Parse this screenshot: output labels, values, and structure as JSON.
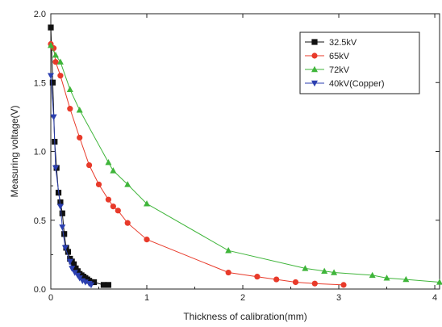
{
  "chart_data": {
    "type": "scatter",
    "xlabel": "Thickness of calibration(mm)",
    "ylabel": "Measuring voltage(V)",
    "xlim": [
      0,
      4.05
    ],
    "ylim": [
      0,
      2.0
    ],
    "x_ticks": [
      "0",
      "1",
      "2",
      "3",
      "4"
    ],
    "y_ticks": [
      "0.0",
      "0.5",
      "1.0",
      "1.5",
      "2.0"
    ],
    "legend_position": "top-right",
    "series": [
      {
        "name": "32.5kV",
        "color": "#111111",
        "marker": "square",
        "x": [
          0.0,
          0.02,
          0.04,
          0.06,
          0.08,
          0.1,
          0.12,
          0.14,
          0.16,
          0.18,
          0.2,
          0.22,
          0.24,
          0.26,
          0.28,
          0.3,
          0.32,
          0.34,
          0.36,
          0.38,
          0.4,
          0.42,
          0.45,
          0.55,
          0.6
        ],
        "y": [
          1.9,
          1.5,
          1.07,
          0.88,
          0.7,
          0.63,
          0.55,
          0.4,
          0.3,
          0.27,
          0.22,
          0.2,
          0.18,
          0.15,
          0.13,
          0.11,
          0.1,
          0.09,
          0.08,
          0.07,
          0.06,
          0.05,
          0.05,
          0.03,
          0.03
        ]
      },
      {
        "name": "65kV",
        "color": "#e83a2a",
        "marker": "circle",
        "x": [
          0.0,
          0.03,
          0.05,
          0.1,
          0.2,
          0.3,
          0.4,
          0.5,
          0.6,
          0.65,
          0.7,
          0.8,
          1.0,
          1.85,
          2.15,
          2.35,
          2.55,
          2.75,
          3.05
        ],
        "y": [
          1.78,
          1.75,
          1.65,
          1.55,
          1.31,
          1.1,
          0.9,
          0.76,
          0.65,
          0.6,
          0.57,
          0.48,
          0.36,
          0.12,
          0.09,
          0.07,
          0.05,
          0.04,
          0.03
        ]
      },
      {
        "name": "72kV",
        "color": "#3fb53a",
        "marker": "triangle-up",
        "x": [
          0.0,
          0.05,
          0.1,
          0.2,
          0.3,
          0.6,
          0.65,
          0.8,
          1.0,
          1.85,
          2.65,
          2.85,
          2.95,
          3.35,
          3.5,
          3.7,
          4.05
        ],
        "y": [
          1.77,
          1.7,
          1.65,
          1.45,
          1.3,
          0.92,
          0.86,
          0.76,
          0.62,
          0.28,
          0.15,
          0.13,
          0.12,
          0.1,
          0.08,
          0.07,
          0.05
        ]
      },
      {
        "name": "40kV(Copper)",
        "color": "#2b3fb0",
        "marker": "triangle-down",
        "x": [
          0.0,
          0.03,
          0.05,
          0.1,
          0.12,
          0.15,
          0.2,
          0.22,
          0.25,
          0.28,
          0.3,
          0.33,
          0.36,
          0.4,
          0.42
        ],
        "y": [
          1.55,
          1.25,
          0.88,
          0.6,
          0.45,
          0.3,
          0.2,
          0.15,
          0.12,
          0.1,
          0.08,
          0.06,
          0.05,
          0.04,
          0.03
        ]
      }
    ]
  }
}
